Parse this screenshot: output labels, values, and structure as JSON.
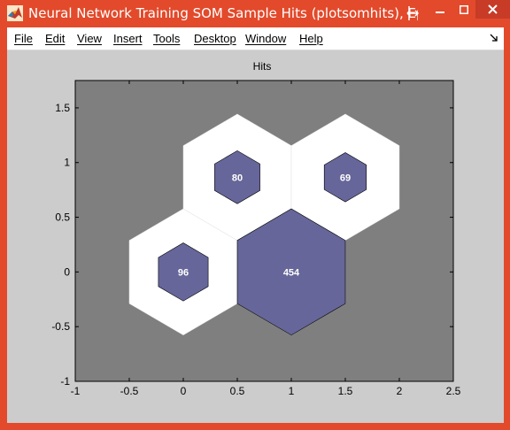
{
  "window": {
    "title": "Neural Network Training SOM Sample Hits (plotsomhits), Epoch ...",
    "controls": {
      "minimize": "minimize-icon",
      "maximize": "maximize-icon",
      "close": "close-icon"
    }
  },
  "menu": {
    "items": [
      {
        "label": "File"
      },
      {
        "label": "Edit"
      },
      {
        "label": "View"
      },
      {
        "label": "Insert"
      },
      {
        "label": "Tools"
      },
      {
        "label": "Desktop"
      },
      {
        "label": "Window"
      },
      {
        "label": "Help"
      }
    ]
  },
  "colors": {
    "title_bar": "#e24a2b",
    "axes_background": "#7f7f7f",
    "figure_background": "#cccccc",
    "neuron_outline": "#ffffff",
    "hit_fill": "#66669a"
  },
  "chart_data": {
    "type": "other",
    "title": "Hits",
    "xlim": [
      -1,
      2.5
    ],
    "ylim": [
      -1,
      1.75
    ],
    "xticks": [
      "-1",
      "-0.5",
      "0",
      "0.5",
      "1",
      "1.5",
      "2",
      "2.5"
    ],
    "yticks": [
      "-1",
      "-0.5",
      "0",
      "0.5",
      "1",
      "1.5"
    ],
    "grid": false,
    "neurons": [
      {
        "x": 0,
        "y": 0,
        "hits": 96
      },
      {
        "x": 1,
        "y": 0,
        "hits": 454
      },
      {
        "x": 0.5,
        "y": 0.866,
        "hits": 80
      },
      {
        "x": 1.5,
        "y": 0.866,
        "hits": 69
      }
    ]
  }
}
